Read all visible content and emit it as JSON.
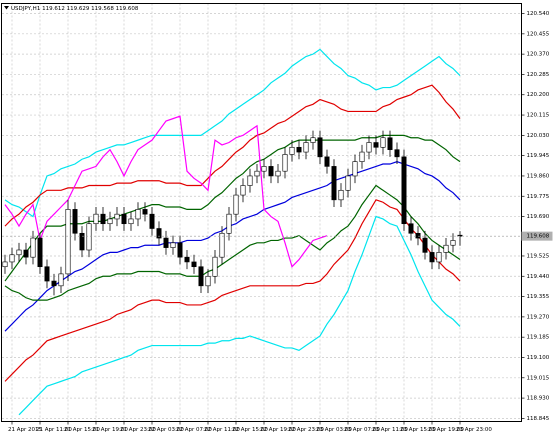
{
  "chart_data": {
    "type": "candlestick",
    "symbol": "USDJPY,H1",
    "categories": [
      null,
      "21 Apr 2015",
      null,
      null,
      null,
      "21 Apr 11:00",
      null,
      null,
      null,
      "21 Apr 15:00",
      null,
      null,
      null,
      "21 Apr 19:00",
      null,
      null,
      null,
      "21 Apr 23:00",
      null,
      null,
      null,
      "22 Apr 03:00",
      null,
      null,
      null,
      "22 Apr 07:00",
      null,
      null,
      null,
      "22 Apr 11:00",
      null,
      null,
      null,
      "22 Apr 15:00",
      null,
      null,
      null,
      "22 Apr 19:00",
      null,
      null,
      null,
      "22 Apr 23:00",
      null,
      null,
      null,
      "23 Apr 03:00",
      null,
      null,
      null,
      "23 Apr 07:00",
      null,
      null,
      null,
      "23 Apr 11:00",
      null,
      null,
      null,
      "23 Apr 15:00",
      null,
      null,
      null,
      "23 Apr 19:00",
      null,
      null,
      null,
      "23 Apr 23:00"
    ],
    "ohlc": [
      [
        119.48,
        119.53,
        119.45,
        119.5
      ],
      [
        119.5,
        119.56,
        119.47,
        119.53
      ],
      [
        119.53,
        119.58,
        119.5,
        119.55
      ],
      [
        119.55,
        119.58,
        119.49,
        119.52
      ],
      [
        119.52,
        119.63,
        119.49,
        119.6
      ],
      [
        119.6,
        119.62,
        119.45,
        119.48
      ],
      [
        119.48,
        119.51,
        119.39,
        119.42
      ],
      [
        119.42,
        119.45,
        119.36,
        119.4
      ],
      [
        119.4,
        119.48,
        119.37,
        119.45
      ],
      [
        119.45,
        119.76,
        119.42,
        119.72
      ],
      [
        119.72,
        119.75,
        119.59,
        119.62
      ],
      [
        119.62,
        119.65,
        119.52,
        119.55
      ],
      [
        119.55,
        119.69,
        119.52,
        119.66
      ],
      [
        119.66,
        119.73,
        119.63,
        119.7
      ],
      [
        119.7,
        119.73,
        119.63,
        119.66
      ],
      [
        119.66,
        119.71,
        119.63,
        119.68
      ],
      [
        119.68,
        119.73,
        119.65,
        119.7
      ],
      [
        119.7,
        119.73,
        119.63,
        119.66
      ],
      [
        119.66,
        119.71,
        119.63,
        119.68
      ],
      [
        119.68,
        119.75,
        119.65,
        119.72
      ],
      [
        119.72,
        119.75,
        119.67,
        119.7
      ],
      [
        119.7,
        119.73,
        119.61,
        119.64
      ],
      [
        119.64,
        119.67,
        119.57,
        119.6
      ],
      [
        119.6,
        119.63,
        119.53,
        119.56
      ],
      [
        119.56,
        119.61,
        119.53,
        119.58
      ],
      [
        119.58,
        119.61,
        119.49,
        119.52
      ],
      [
        119.52,
        119.55,
        119.47,
        119.5
      ],
      [
        119.5,
        119.53,
        119.45,
        119.48
      ],
      [
        119.48,
        119.51,
        119.37,
        119.4
      ],
      [
        119.4,
        119.47,
        119.37,
        119.44
      ],
      [
        119.44,
        119.55,
        119.41,
        119.52
      ],
      [
        119.52,
        119.65,
        119.49,
        119.62
      ],
      [
        119.62,
        119.73,
        119.59,
        119.7
      ],
      [
        119.7,
        119.81,
        119.67,
        119.78
      ],
      [
        119.78,
        119.85,
        119.75,
        119.82
      ],
      [
        119.82,
        119.89,
        119.79,
        119.86
      ],
      [
        119.86,
        119.91,
        119.83,
        119.88
      ],
      [
        119.88,
        119.93,
        119.85,
        119.9
      ],
      [
        119.9,
        119.93,
        119.83,
        119.86
      ],
      [
        119.86,
        119.91,
        119.83,
        119.88
      ],
      [
        119.88,
        119.98,
        119.85,
        119.95
      ],
      [
        119.95,
        120.01,
        119.92,
        119.98
      ],
      [
        119.98,
        120.01,
        119.93,
        119.96
      ],
      [
        119.96,
        120.03,
        119.93,
        120.0
      ],
      [
        120.0,
        120.05,
        119.97,
        120.02
      ],
      [
        120.02,
        120.05,
        119.91,
        119.94
      ],
      [
        119.94,
        119.97,
        119.87,
        119.9
      ],
      [
        119.9,
        119.93,
        119.73,
        119.76
      ],
      [
        119.76,
        119.83,
        119.73,
        119.8
      ],
      [
        119.8,
        119.89,
        119.77,
        119.86
      ],
      [
        119.86,
        119.95,
        119.83,
        119.92
      ],
      [
        119.92,
        119.99,
        119.89,
        119.96
      ],
      [
        119.96,
        120.03,
        119.93,
        120.0
      ],
      [
        120.0,
        120.03,
        119.95,
        119.98
      ],
      [
        119.98,
        120.05,
        119.95,
        120.02
      ],
      [
        120.02,
        120.05,
        119.94,
        119.97
      ],
      [
        119.97,
        120.0,
        119.91,
        119.94
      ],
      [
        119.94,
        119.97,
        119.63,
        119.66
      ],
      [
        119.66,
        119.69,
        119.59,
        119.62
      ],
      [
        119.62,
        119.65,
        119.57,
        119.6
      ],
      [
        119.6,
        119.63,
        119.51,
        119.54
      ],
      [
        119.54,
        119.57,
        119.47,
        119.5
      ],
      [
        119.5,
        119.57,
        119.47,
        119.54
      ],
      [
        119.54,
        119.6,
        119.51,
        119.57
      ],
      [
        119.57,
        119.62,
        119.54,
        119.59
      ],
      [
        119.612,
        119.629,
        119.568,
        119.608
      ]
    ],
    "lines": [
      {
        "color": "#00e5ee",
        "values": [
          119.76,
          119.74,
          119.73,
          119.71,
          119.69,
          119.78,
          119.86,
          119.87,
          119.89,
          119.9,
          119.91,
          119.93,
          119.94,
          119.96,
          119.97,
          119.98,
          119.99,
          119.99,
          120.0,
          120.01,
          120.02,
          120.03,
          120.03,
          120.03,
          120.03,
          120.03,
          120.03,
          120.03,
          120.03,
          120.05,
          120.07,
          120.09,
          120.12,
          120.14,
          120.16,
          120.18,
          120.2,
          120.22,
          120.25,
          120.27,
          120.29,
          120.32,
          120.34,
          120.36,
          120.37,
          120.39,
          120.36,
          120.33,
          120.31,
          120.28,
          120.27,
          120.25,
          120.24,
          120.22,
          120.23,
          120.23,
          120.24,
          120.26,
          120.28,
          120.3,
          120.32,
          120.34,
          120.36,
          120.33,
          120.31,
          120.28
        ]
      },
      {
        "color": "#e00000",
        "values": [
          119.65,
          119.68,
          119.7,
          119.73,
          119.75,
          119.78,
          119.8,
          119.8,
          119.8,
          119.81,
          119.81,
          119.81,
          119.82,
          119.82,
          119.82,
          119.82,
          119.83,
          119.83,
          119.83,
          119.84,
          119.84,
          119.84,
          119.84,
          119.83,
          119.83,
          119.83,
          119.82,
          119.82,
          119.82,
          119.85,
          119.88,
          119.9,
          119.93,
          119.96,
          119.98,
          120.01,
          120.03,
          120.04,
          120.06,
          120.08,
          120.09,
          120.11,
          120.13,
          120.15,
          120.16,
          120.18,
          120.17,
          120.16,
          120.14,
          120.13,
          120.13,
          120.13,
          120.13,
          120.13,
          120.15,
          120.16,
          120.18,
          120.19,
          120.2,
          120.22,
          120.23,
          120.24,
          120.21,
          120.17,
          120.14,
          120.1
        ]
      },
      {
        "color": "#006400",
        "values": [
          119.42,
          119.46,
          119.5,
          119.54,
          119.58,
          119.62,
          119.65,
          119.65,
          119.65,
          119.66,
          119.66,
          119.66,
          119.67,
          119.67,
          119.67,
          119.68,
          119.69,
          119.7,
          119.71,
          119.72,
          119.73,
          119.74,
          119.74,
          119.73,
          119.73,
          119.73,
          119.72,
          119.72,
          119.72,
          119.74,
          119.77,
          119.79,
          119.82,
          119.85,
          119.87,
          119.9,
          119.92,
          119.93,
          119.95,
          119.97,
          119.98,
          120.0,
          120.01,
          120.01,
          120.01,
          120.01,
          120.01,
          120.01,
          120.01,
          120.01,
          120.01,
          120.02,
          120.02,
          120.02,
          120.03,
          120.03,
          120.03,
          120.03,
          120.02,
          120.02,
          120.01,
          120.01,
          119.99,
          119.97,
          119.94,
          119.92
        ]
      },
      {
        "color": "#0000dd",
        "values": [
          119.21,
          119.24,
          119.27,
          119.3,
          119.32,
          119.35,
          119.38,
          119.4,
          119.42,
          119.44,
          119.46,
          119.47,
          119.49,
          119.51,
          119.53,
          119.54,
          119.54,
          119.55,
          119.56,
          119.56,
          119.57,
          119.57,
          119.57,
          119.58,
          119.58,
          119.58,
          119.59,
          119.59,
          119.59,
          119.6,
          119.62,
          119.63,
          119.65,
          119.66,
          119.68,
          119.69,
          119.7,
          119.72,
          119.73,
          119.74,
          119.75,
          119.77,
          119.78,
          119.79,
          119.8,
          119.81,
          119.82,
          119.84,
          119.85,
          119.86,
          119.87,
          119.88,
          119.89,
          119.9,
          119.91,
          119.91,
          119.92,
          119.91,
          119.9,
          119.89,
          119.87,
          119.86,
          119.84,
          119.81,
          119.79,
          119.76
        ]
      },
      {
        "color": "#006400",
        "values": [
          119.4,
          119.38,
          119.37,
          119.35,
          119.34,
          119.34,
          119.34,
          119.35,
          119.36,
          119.38,
          119.39,
          119.4,
          119.41,
          119.43,
          119.44,
          119.44,
          119.45,
          119.45,
          119.45,
          119.46,
          119.46,
          119.46,
          119.46,
          119.45,
          119.45,
          119.45,
          119.44,
          119.44,
          119.44,
          119.46,
          119.47,
          119.49,
          119.51,
          119.53,
          119.55,
          119.57,
          119.58,
          119.58,
          119.59,
          119.59,
          119.6,
          119.6,
          119.61,
          119.59,
          119.57,
          119.55,
          119.58,
          119.6,
          119.63,
          119.65,
          119.69,
          119.74,
          119.78,
          119.82,
          119.8,
          119.78,
          119.76,
          119.73,
          119.69,
          119.66,
          119.62,
          119.59,
          119.57,
          119.55,
          119.53,
          119.51
        ]
      },
      {
        "color": "#e00000",
        "values": [
          119.0,
          119.03,
          119.06,
          119.09,
          119.11,
          119.14,
          119.17,
          119.18,
          119.19,
          119.2,
          119.21,
          119.22,
          119.23,
          119.24,
          119.25,
          119.26,
          119.28,
          119.29,
          119.3,
          119.32,
          119.33,
          119.34,
          119.34,
          119.33,
          119.33,
          119.33,
          119.32,
          119.32,
          119.32,
          119.33,
          119.34,
          119.36,
          119.37,
          119.38,
          119.39,
          119.4,
          119.4,
          119.4,
          119.4,
          119.4,
          119.4,
          119.4,
          119.4,
          119.41,
          119.41,
          119.42,
          119.45,
          119.49,
          119.52,
          119.55,
          119.6,
          119.66,
          119.71,
          119.76,
          119.75,
          119.73,
          119.72,
          119.68,
          119.64,
          119.61,
          119.57,
          119.53,
          119.5,
          119.47,
          119.45,
          119.42
        ]
      },
      {
        "color": "#00e5ee",
        "values": [
          null,
          null,
          118.86,
          118.89,
          118.92,
          118.95,
          118.98,
          118.99,
          119.0,
          119.01,
          119.02,
          119.04,
          119.05,
          119.06,
          119.07,
          119.08,
          119.09,
          119.1,
          119.11,
          119.13,
          119.14,
          119.15,
          119.15,
          119.15,
          119.15,
          119.15,
          119.15,
          119.15,
          119.15,
          119.16,
          119.16,
          119.17,
          119.17,
          119.18,
          119.18,
          119.19,
          119.18,
          119.17,
          119.16,
          119.15,
          119.14,
          119.14,
          119.13,
          119.15,
          119.17,
          119.19,
          119.24,
          119.28,
          119.33,
          119.38,
          119.46,
          119.53,
          119.61,
          119.69,
          119.68,
          119.66,
          119.65,
          119.59,
          119.53,
          119.46,
          119.4,
          119.34,
          119.31,
          119.28,
          119.26,
          119.23
        ]
      },
      {
        "color": "#ff00ff",
        "values": [
          119.74,
          119.7,
          119.65,
          119.7,
          119.74,
          119.59,
          119.67,
          119.7,
          119.73,
          119.76,
          119.82,
          119.88,
          119.89,
          119.9,
          119.94,
          119.97,
          119.92,
          119.86,
          119.92,
          119.97,
          119.99,
          120.01,
          120.05,
          120.09,
          120.1,
          120.11,
          119.88,
          119.85,
          119.83,
          119.8,
          120.01,
          119.99,
          120.0,
          120.02,
          120.03,
          120.05,
          120.07,
          119.72,
          119.69,
          119.67,
          119.58,
          119.48,
          119.51,
          119.55,
          119.59,
          119.6,
          119.61,
          null,
          null,
          null,
          null,
          null,
          null,
          null,
          null,
          null,
          null,
          null,
          null,
          null,
          null,
          null,
          null,
          null,
          null,
          null
        ]
      }
    ],
    "ylim": [
      118.832,
      120.582
    ],
    "yticks": [
      {
        "value": 120.54,
        "label": "120.540"
      },
      {
        "value": 120.455,
        "label": "120.455"
      },
      {
        "value": 120.37,
        "label": "120.370"
      },
      {
        "value": 120.285,
        "label": "120.285"
      },
      {
        "value": 120.2,
        "label": "120.200"
      },
      {
        "value": 120.115,
        "label": "120.115"
      },
      {
        "value": 120.03,
        "label": "120.030"
      },
      {
        "value": 119.945,
        "label": "119.945"
      },
      {
        "value": 119.86,
        "label": "119.860"
      },
      {
        "value": 119.775,
        "label": "119.775"
      },
      {
        "value": 119.69,
        "label": "119.690"
      },
      {
        "value": 119.525,
        "label": "119.525"
      },
      {
        "value": 119.44,
        "label": "119.440"
      },
      {
        "value": 119.355,
        "label": "119.355"
      },
      {
        "value": 119.27,
        "label": "119.270"
      },
      {
        "value": 119.185,
        "label": "119.185"
      },
      {
        "value": 119.1,
        "label": "119.100"
      },
      {
        "value": 119.015,
        "label": "119.015"
      },
      {
        "value": 118.93,
        "label": "118.930"
      },
      {
        "value": 118.845,
        "label": "118.845"
      }
    ],
    "grid": true,
    "bull_color": "#ffffff",
    "bear_color": "#000000"
  }
}
